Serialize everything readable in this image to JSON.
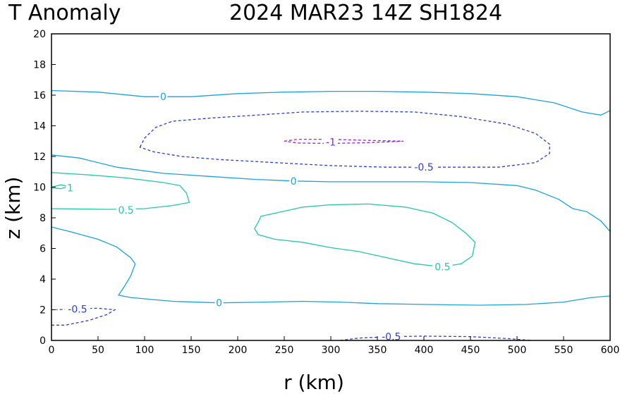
{
  "chart_data": {
    "type": "contour",
    "title_left": "T Anomaly",
    "title_right": "2024 MAR23 14Z   SH1824",
    "xlabel": "r (km)",
    "ylabel": "z (km)",
    "xlim": [
      0,
      600
    ],
    "ylim": [
      0,
      20
    ],
    "xticks": [
      0,
      50,
      100,
      150,
      200,
      250,
      300,
      350,
      400,
      450,
      500,
      550,
      600
    ],
    "yticks": [
      0,
      2,
      4,
      6,
      8,
      10,
      12,
      14,
      16,
      18,
      20
    ],
    "grid": false,
    "colors": {
      "level_1": "#22c9a8",
      "level_0.5": "#22c9a8",
      "level_0": "#1aa3e0",
      "level_-0.5": "#2a3ee0",
      "level_-1": "#9a1ee6"
    },
    "contours": [
      {
        "level": "0",
        "label": "0",
        "label_at": [
          120,
          15.9
        ],
        "closed": false,
        "points": [
          [
            0,
            16.3
          ],
          [
            50,
            16.2
          ],
          [
            100,
            15.9
          ],
          [
            150,
            15.9
          ],
          [
            200,
            16.1
          ],
          [
            250,
            16.2
          ],
          [
            300,
            16.25
          ],
          [
            350,
            16.25
          ],
          [
            400,
            16.2
          ],
          [
            450,
            16.1
          ],
          [
            500,
            15.9
          ],
          [
            540,
            15.5
          ],
          [
            570,
            14.9
          ],
          [
            590,
            14.7
          ],
          [
            600,
            15.0
          ]
        ]
      },
      {
        "level": "0",
        "label": "0",
        "label_at": [
          260,
          10.4
        ],
        "closed": false,
        "points": [
          [
            0,
            12.1
          ],
          [
            30,
            11.9
          ],
          [
            70,
            11.3
          ],
          [
            120,
            10.9
          ],
          [
            170,
            10.7
          ],
          [
            220,
            10.5
          ],
          [
            260,
            10.4
          ],
          [
            300,
            10.35
          ],
          [
            350,
            10.35
          ],
          [
            400,
            10.35
          ],
          [
            450,
            10.3
          ],
          [
            500,
            10.1
          ],
          [
            520,
            9.8
          ],
          [
            545,
            9.2
          ],
          [
            560,
            8.6
          ],
          [
            575,
            8.4
          ],
          [
            590,
            7.8
          ],
          [
            600,
            7.1
          ]
        ]
      },
      {
        "level": "0",
        "label": "0",
        "label_at": [
          180,
          2.45
        ],
        "closed": false,
        "points": [
          [
            0,
            7.4
          ],
          [
            20,
            7.1
          ],
          [
            50,
            6.6
          ],
          [
            70,
            6.1
          ],
          [
            85,
            5.4
          ],
          [
            90,
            5.0
          ],
          [
            85,
            4.2
          ],
          [
            78,
            3.5
          ],
          [
            72,
            2.95
          ],
          [
            85,
            2.8
          ],
          [
            130,
            2.55
          ],
          [
            180,
            2.45
          ],
          [
            230,
            2.5
          ],
          [
            270,
            2.55
          ],
          [
            310,
            2.5
          ],
          [
            350,
            2.4
          ],
          [
            400,
            2.35
          ],
          [
            460,
            2.3
          ],
          [
            510,
            2.35
          ],
          [
            550,
            2.5
          ],
          [
            580,
            2.8
          ],
          [
            600,
            2.9
          ]
        ]
      },
      {
        "level": "0.5",
        "label": "0.5",
        "label_at": [
          80,
          8.5
        ],
        "closed": false,
        "points": [
          [
            0,
            10.95
          ],
          [
            40,
            10.8
          ],
          [
            80,
            10.6
          ],
          [
            120,
            10.3
          ],
          [
            138,
            10.1
          ],
          [
            145,
            9.6
          ],
          [
            148,
            9.0
          ],
          [
            130,
            8.8
          ],
          [
            100,
            8.6
          ],
          [
            60,
            8.55
          ],
          [
            0,
            8.6
          ]
        ]
      },
      {
        "level": "0.5",
        "label": "0.5",
        "label_at": [
          420,
          4.8
        ],
        "closed": true,
        "points": [
          [
            222,
            7.7
          ],
          [
            225,
            8.1
          ],
          [
            240,
            8.3
          ],
          [
            270,
            8.7
          ],
          [
            300,
            8.85
          ],
          [
            340,
            8.9
          ],
          [
            380,
            8.7
          ],
          [
            410,
            8.3
          ],
          [
            430,
            7.7
          ],
          [
            445,
            7.0
          ],
          [
            455,
            6.4
          ],
          [
            452,
            5.5
          ],
          [
            440,
            5.0
          ],
          [
            420,
            4.8
          ],
          [
            390,
            5.0
          ],
          [
            360,
            5.4
          ],
          [
            330,
            5.8
          ],
          [
            300,
            6.05
          ],
          [
            270,
            6.4
          ],
          [
            240,
            6.6
          ],
          [
            222,
            6.9
          ],
          [
            218,
            7.3
          ],
          [
            222,
            7.7
          ]
        ]
      },
      {
        "level": "1",
        "label": "1",
        "label_at": [
          20,
          9.95
        ],
        "closed": false,
        "points": [
          [
            0,
            10.0
          ],
          [
            10,
            10.15
          ],
          [
            18,
            10.05
          ],
          [
            10,
            9.9
          ],
          [
            0,
            9.95
          ]
        ]
      },
      {
        "level": "-0.5",
        "label": "-0.5",
        "label_at": [
          400,
          11.3
        ],
        "closed": true,
        "points": [
          [
            95,
            12.6
          ],
          [
            100,
            13.2
          ],
          [
            112,
            13.9
          ],
          [
            130,
            14.3
          ],
          [
            170,
            14.5
          ],
          [
            220,
            14.7
          ],
          [
            270,
            14.9
          ],
          [
            330,
            14.95
          ],
          [
            390,
            14.9
          ],
          [
            440,
            14.6
          ],
          [
            490,
            14.1
          ],
          [
            520,
            13.5
          ],
          [
            535,
            12.8
          ],
          [
            535,
            12.2
          ],
          [
            520,
            11.6
          ],
          [
            480,
            11.3
          ],
          [
            420,
            11.3
          ],
          [
            360,
            11.3
          ],
          [
            300,
            11.4
          ],
          [
            240,
            11.6
          ],
          [
            180,
            11.8
          ],
          [
            140,
            12.0
          ],
          [
            110,
            12.3
          ],
          [
            95,
            12.6
          ]
        ]
      },
      {
        "level": "-0.5",
        "label": "-0.5",
        "label_at": [
          28,
          2.05
        ],
        "closed": false,
        "points": [
          [
            0,
            1.0
          ],
          [
            15,
            1.0
          ],
          [
            40,
            1.3
          ],
          [
            60,
            1.7
          ],
          [
            68,
            2.0
          ],
          [
            50,
            2.1
          ],
          [
            20,
            2.05
          ],
          [
            5,
            2.0
          ]
        ]
      },
      {
        "level": "-0.5",
        "label": "-0.5",
        "label_at": [
          365,
          0.25
        ],
        "closed": false,
        "points": [
          [
            310,
            0.0
          ],
          [
            330,
            0.15
          ],
          [
            365,
            0.25
          ],
          [
            400,
            0.28
          ],
          [
            450,
            0.25
          ],
          [
            490,
            0.12
          ],
          [
            515,
            0.0
          ]
        ]
      },
      {
        "level": "-1",
        "label": "-1",
        "label_at": [
          300,
          12.95
        ],
        "closed": true,
        "points": [
          [
            250,
            13.0
          ],
          [
            265,
            13.12
          ],
          [
            300,
            13.12
          ],
          [
            340,
            13.05
          ],
          [
            378,
            13.0
          ],
          [
            340,
            12.9
          ],
          [
            300,
            12.85
          ],
          [
            265,
            12.88
          ],
          [
            250,
            13.0
          ]
        ]
      }
    ]
  }
}
